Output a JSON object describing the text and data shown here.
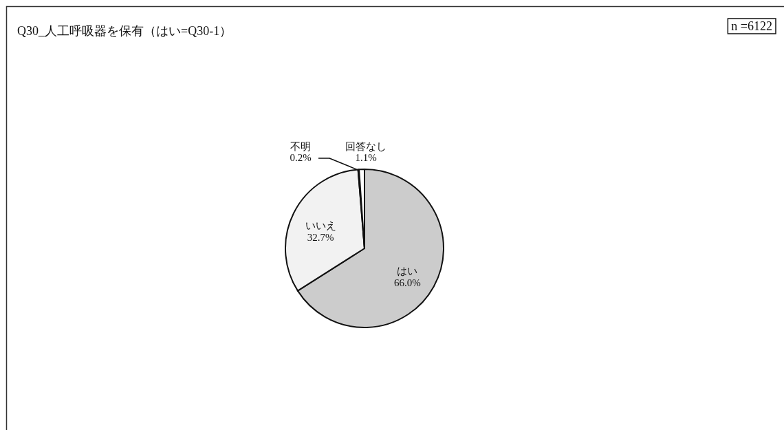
{
  "chart_data": {
    "type": "pie",
    "title": "Q30_人工呼吸器を保有（はい=Q30-1）",
    "annotations": [
      "n =6122"
    ],
    "categories": [
      "はい",
      "いいえ",
      "不明",
      "回答なし"
    ],
    "values": [
      66.0,
      32.7,
      0.2,
      1.1
    ],
    "colors": [
      "#cccccc",
      "#f2f2f2",
      "#ffffff",
      "#ffffff"
    ],
    "value_labels": [
      "66.0%",
      "32.7%",
      "0.2%",
      "1.1%"
    ]
  }
}
